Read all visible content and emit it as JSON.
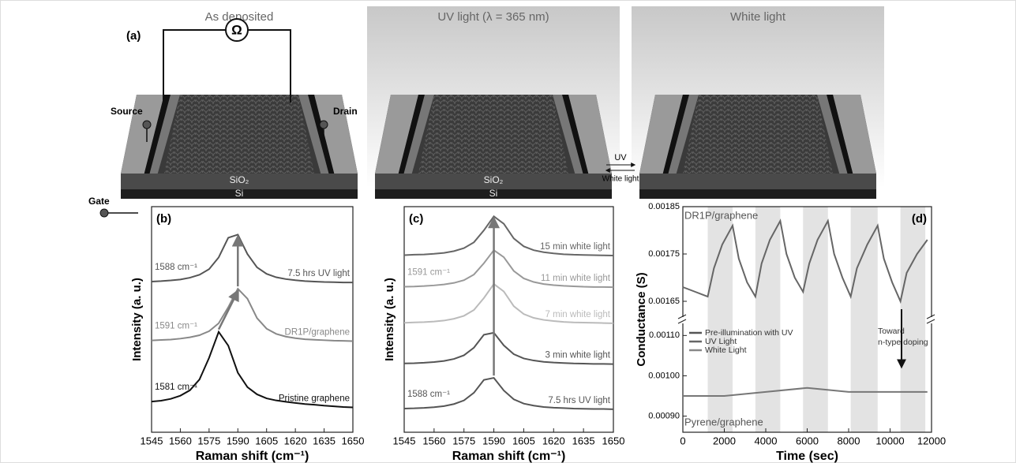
{
  "panel_a": {
    "label": "(a)",
    "titles": [
      "As deposited",
      "UV light (λ = 365 nm)",
      "White light"
    ],
    "ohm": "Ω",
    "source": "Source",
    "drain": "Drain",
    "gate": "Gate",
    "sio2": [
      "SiO₂",
      "SiO₂"
    ],
    "si": [
      "Si",
      "Si"
    ],
    "switch": [
      "UV",
      "White light"
    ]
  },
  "chart_data": [
    {
      "type": "line",
      "label": "(b)",
      "x_label": "Raman shift (cm⁻¹)",
      "y_label": "Intensity (a. u.)",
      "x": [
        1545,
        1550,
        1555,
        1560,
        1565,
        1570,
        1575,
        1580,
        1585,
        1590,
        1595,
        1600,
        1605,
        1610,
        1615,
        1620,
        1625,
        1630,
        1635,
        1640,
        1645,
        1650
      ],
      "xlim": [
        1545,
        1650
      ],
      "xticks": [
        1545,
        1560,
        1575,
        1590,
        1605,
        1620,
        1635,
        1650
      ],
      "ylim": [
        0,
        10
      ],
      "series": [
        {
          "name": "7.5 hrs UV light",
          "color": "#555555",
          "peak_label": "1588 cm⁻¹",
          "values": [
            6.68,
            6.7,
            6.73,
            6.77,
            6.85,
            6.98,
            7.23,
            7.75,
            8.62,
            8.76,
            7.9,
            7.31,
            7.02,
            6.87,
            6.79,
            6.74,
            6.7,
            6.68,
            6.66,
            6.65,
            6.64,
            6.64
          ]
        },
        {
          "name": "DR1P/graphene",
          "color": "#888888",
          "peak_label": "1591 cm⁻¹",
          "values": [
            4.07,
            4.09,
            4.11,
            4.15,
            4.21,
            4.3,
            4.48,
            4.83,
            5.54,
            6.36,
            5.92,
            5.06,
            4.59,
            4.36,
            4.24,
            4.17,
            4.12,
            4.1,
            4.08,
            4.06,
            4.05,
            4.04
          ]
        },
        {
          "name": "Pristine graphene",
          "color": "#111111",
          "peak_label": "1581 cm⁻¹",
          "values": [
            1.36,
            1.4,
            1.48,
            1.62,
            1.86,
            2.34,
            3.3,
            4.45,
            3.84,
            2.64,
            2.0,
            1.68,
            1.5,
            1.41,
            1.35,
            1.3,
            1.25,
            1.22,
            1.18,
            1.15,
            1.12,
            1.1
          ]
        }
      ]
    },
    {
      "type": "line",
      "label": "(c)",
      "x_label": "Raman shift (cm⁻¹)",
      "y_label": "Intensity (a. u.)",
      "x": [
        1545,
        1550,
        1555,
        1560,
        1565,
        1570,
        1575,
        1580,
        1585,
        1590,
        1595,
        1600,
        1605,
        1610,
        1615,
        1620,
        1625,
        1630,
        1635,
        1640,
        1645,
        1650
      ],
      "xlim": [
        1545,
        1650
      ],
      "xticks": [
        1545,
        1560,
        1575,
        1590,
        1605,
        1620,
        1635,
        1650
      ],
      "ylim": [
        0,
        10
      ],
      "series": [
        {
          "name": "7.5 hrs UV light",
          "color": "#555555",
          "peak_label": "1588 cm⁻¹",
          "values": [
            1.05,
            1.06,
            1.08,
            1.11,
            1.16,
            1.25,
            1.41,
            1.75,
            2.32,
            2.41,
            1.85,
            1.46,
            1.27,
            1.18,
            1.12,
            1.09,
            1.07,
            1.05,
            1.04,
            1.03,
            1.03,
            1.02
          ]
        },
        {
          "name": "3 min white light",
          "color": "#555555",
          "values": [
            3.05,
            3.06,
            3.08,
            3.11,
            3.16,
            3.25,
            3.41,
            3.75,
            4.32,
            4.41,
            3.85,
            3.46,
            3.27,
            3.18,
            3.12,
            3.09,
            3.07,
            3.05,
            3.04,
            3.03,
            3.03,
            3.02
          ]
        },
        {
          "name": "7 min white light",
          "color": "#bbbbbb",
          "values": [
            4.85,
            4.87,
            4.88,
            4.91,
            4.95,
            5.03,
            5.16,
            5.42,
            5.95,
            6.57,
            6.24,
            5.59,
            5.24,
            5.07,
            4.98,
            4.93,
            4.89,
            4.87,
            4.86,
            4.85,
            4.84,
            4.83
          ]
        },
        {
          "name": "11 min white light",
          "color": "#999999",
          "peak_label": "1591 cm⁻¹",
          "values": [
            6.45,
            6.46,
            6.48,
            6.51,
            6.55,
            6.62,
            6.74,
            6.99,
            7.49,
            8.07,
            7.76,
            7.15,
            6.82,
            6.66,
            6.57,
            6.52,
            6.49,
            6.47,
            6.45,
            6.44,
            6.44,
            6.43
          ]
        },
        {
          "name": "15 min white light",
          "color": "#666666",
          "values": [
            7.85,
            7.87,
            7.88,
            7.91,
            7.95,
            8.03,
            8.16,
            8.42,
            8.95,
            9.57,
            9.24,
            8.59,
            8.24,
            8.07,
            7.98,
            7.93,
            7.89,
            7.87,
            7.86,
            7.85,
            7.84,
            7.83
          ]
        }
      ]
    },
    {
      "type": "line",
      "label": "(d)",
      "x_label": "Time (sec)",
      "y_label": "Conductance (S)",
      "xlim": [
        0,
        12000
      ],
      "xticks": [
        0,
        2000,
        4000,
        6000,
        8000,
        10000,
        12000
      ],
      "ylim": [
        0.00162,
        0.00185
      ],
      "yticks": [
        {
          "value": 0.00165,
          "label": "0.00165"
        },
        {
          "value": 0.00175,
          "label": "0.00175"
        },
        {
          "value": 0.00185,
          "label": "0.00185"
        }
      ],
      "y2lim": [
        0.00086,
        0.00113
      ],
      "y2ticks": [
        {
          "value": 0.0009,
          "label": "0.00090"
        },
        {
          "value": 0.001,
          "label": "0.00100"
        },
        {
          "value": 0.0011,
          "label": "0.00110"
        }
      ],
      "shaded": [
        [
          1200,
          2400
        ],
        [
          3500,
          4700
        ],
        [
          5800,
          7000
        ],
        [
          8100,
          9400
        ],
        [
          10500,
          11700
        ]
      ],
      "legend": [
        {
          "name": "Pre-illumination with UV",
          "color": "#555555"
        },
        {
          "name": "UV Light",
          "color": "#666666"
        },
        {
          "name": "White Light",
          "color": "#888888"
        }
      ],
      "annotation": [
        "Toward",
        "n-type doping"
      ],
      "series": [
        {
          "name": "DR1P/graphene",
          "color": "#666666",
          "x": [
            0,
            600,
            1200,
            1500,
            1900,
            2400,
            2700,
            3100,
            3500,
            3800,
            4200,
            4700,
            5000,
            5400,
            5800,
            6100,
            6500,
            7000,
            7300,
            7700,
            8100,
            8400,
            8900,
            9400,
            9700,
            10100,
            10500,
            10800,
            11300,
            11800
          ],
          "values": [
            0.00168,
            0.00167,
            0.00166,
            0.00172,
            0.00177,
            0.00181,
            0.00174,
            0.00169,
            0.00166,
            0.00173,
            0.00178,
            0.00182,
            0.00175,
            0.0017,
            0.00167,
            0.00173,
            0.00178,
            0.00182,
            0.00175,
            0.0017,
            0.00166,
            0.00172,
            0.00177,
            0.00181,
            0.00174,
            0.00169,
            0.00165,
            0.00171,
            0.00175,
            0.00178
          ]
        },
        {
          "name": "Pyrene/graphene",
          "color": "#777777",
          "axis": "y2",
          "x": [
            0,
            2000,
            4000,
            6000,
            8000,
            10000,
            11800
          ],
          "values": [
            0.00095,
            0.00095,
            0.00096,
            0.00097,
            0.00096,
            0.00096,
            0.00096
          ]
        }
      ]
    }
  ]
}
